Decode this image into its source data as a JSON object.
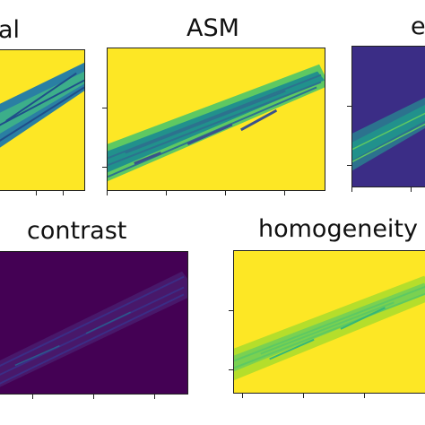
{
  "titles": {
    "original": "al",
    "asm": "ASM",
    "energy": "e",
    "contrast": "contrast",
    "homogeneity": "homogeneity"
  },
  "colors": {
    "viridis_yellow": "#fde725",
    "viridis_purple": "#440154",
    "viridis_dark_blue": "#3b2d86",
    "viridis_teal": "#21918c",
    "viridis_green": "#5ec962"
  }
}
